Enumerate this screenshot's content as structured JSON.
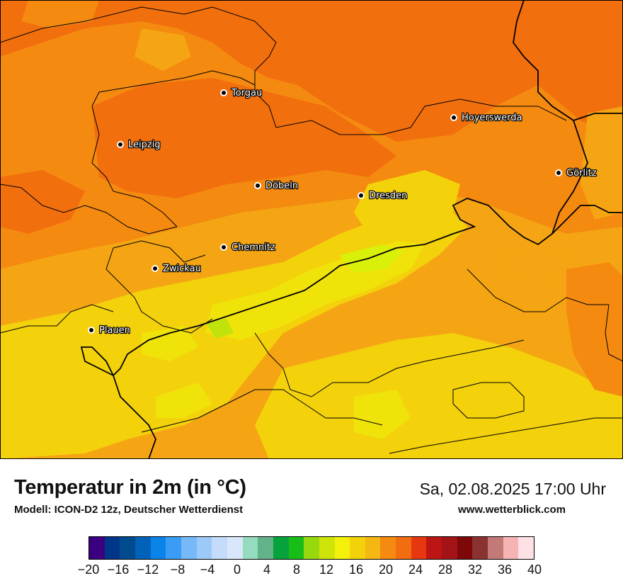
{
  "map": {
    "cities": [
      {
        "name": "Torgau"
      },
      {
        "name": "Hoyerswerda"
      },
      {
        "name": "Leipzig"
      },
      {
        "name": "Görlitz"
      },
      {
        "name": "Döbeln"
      },
      {
        "name": "Dresden"
      },
      {
        "name": "Chemnitz"
      },
      {
        "name": "Zwickau"
      },
      {
        "name": "Plauen"
      }
    ],
    "colors": {
      "warm_orange": "#f26f0d",
      "mid_orange": "#f48a10",
      "amber": "#f5a513",
      "yellow": "#f3d10b",
      "bright_yellow": "#f0e30a",
      "lime": "#d9f008",
      "green_yellow": "#bfe30b"
    }
  },
  "footer": {
    "title": "Temperatur in 2m (in °C)",
    "model": "Modell: ICON-D2 12z, Deutscher Wetterdienst",
    "datetime": "Sa, 02.08.2025 17:00 Uhr",
    "website": "www.wetterblick.com"
  },
  "legend": {
    "colors": [
      "#3a0080",
      "#00368a",
      "#004a8e",
      "#0062b8",
      "#0a84e8",
      "#3a9cf5",
      "#76b8f8",
      "#9ccaf8",
      "#c4dcf9",
      "#d9e7fb",
      "#95dbbf",
      "#62b28a",
      "#06a23b",
      "#18bd1a",
      "#97d80e",
      "#cfe408",
      "#f3f10a",
      "#f3d10b",
      "#f5b713",
      "#f48a10",
      "#f26d10",
      "#e63710",
      "#bd1414",
      "#a41317",
      "#7e0808",
      "#8a3232",
      "#c47979",
      "#f6b3b3",
      "#fde1e7"
    ],
    "ticks": [
      "−20",
      "−16",
      "−12",
      "−8",
      "−4",
      "0",
      "4",
      "8",
      "12",
      "16",
      "20",
      "24",
      "28",
      "32",
      "36",
      "40"
    ]
  }
}
